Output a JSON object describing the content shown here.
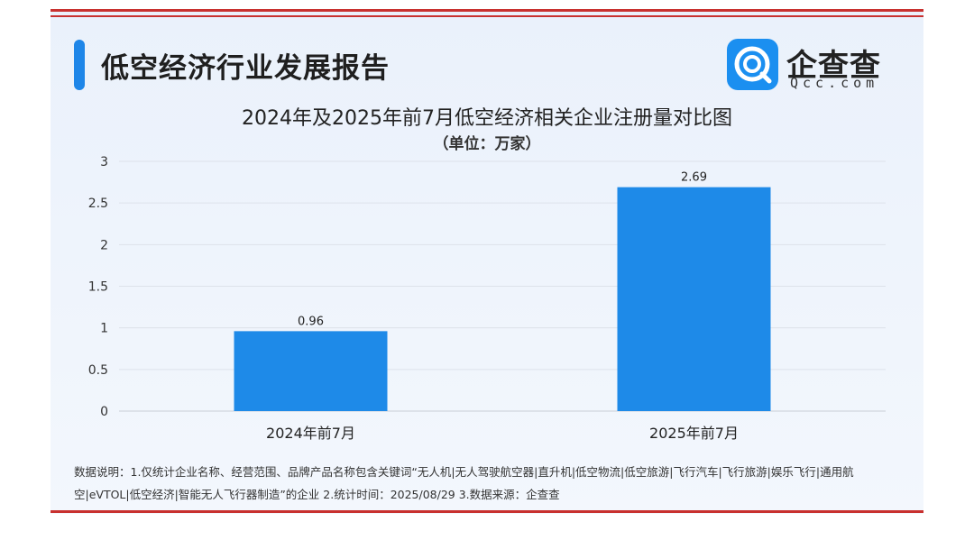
{
  "header": {
    "report_title": "低空经济行业发展报告",
    "logo_name": "企查查",
    "logo_domain": "Qcc.com"
  },
  "colors": {
    "bar": "#1e8ae8",
    "accent": "#1e86e8",
    "rule": "#c8312f"
  },
  "chart_data": {
    "type": "bar",
    "title": "2024年及2025年前7月低空经济相关企业注册量对比图",
    "subtitle": "（单位：万家）",
    "categories": [
      "2024年前7月",
      "2025年前7月"
    ],
    "values": [
      0.96,
      2.69
    ],
    "data_labels": [
      "0.96",
      "2.69"
    ],
    "ylim": [
      0,
      3
    ],
    "yticks": [
      0,
      0.5,
      1,
      1.5,
      2,
      2.5,
      3
    ],
    "ytick_labels": [
      "0",
      "0.5",
      "1",
      "1.5",
      "2",
      "2.5",
      "3"
    ],
    "grid": true,
    "legend": "none"
  },
  "footnote": "数据说明：1.仅统计企业名称、经营范围、品牌产品名称包含关键词“无人机|无人驾驶航空器|直升机|低空物流|低空旅游|飞行汽车|飞行旅游|娱乐飞行|通用航空|eVTOL|低空经济|智能无人飞行器制造”的企业   2.统计时间：2025/08/29   3.数据来源：企查查"
}
